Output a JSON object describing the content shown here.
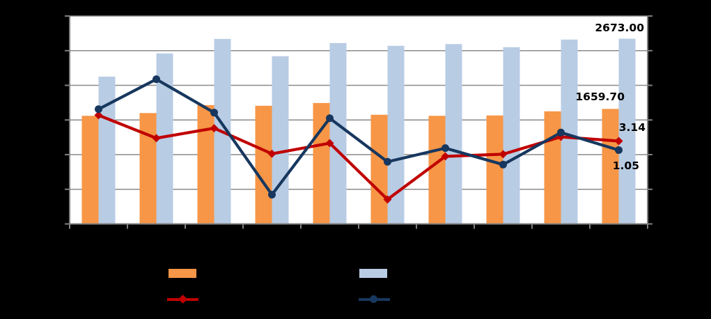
{
  "chart_data": {
    "type": "bar",
    "subtype": "combo-bar-line-dual-axis",
    "title": "",
    "categories": [
      "",
      "",
      "",
      "",
      "",
      "",
      "",
      "",
      "",
      ""
    ],
    "series": [
      {
        "name": "orange-bars",
        "type": "bar",
        "axis": "primary",
        "color": "#F79646",
        "values": [
          1560,
          1600,
          1715,
          1705,
          1745,
          1575,
          1560,
          1565,
          1625,
          1659.7
        ]
      },
      {
        "name": "lightblue-bars",
        "type": "bar",
        "axis": "primary",
        "color": "#B8CCE4",
        "values": [
          2125,
          2460,
          2670,
          2420,
          2610,
          2570,
          2595,
          2550,
          2660,
          2673
        ]
      },
      {
        "name": "red-line",
        "type": "line",
        "axis": "secondary",
        "color": "#C00000",
        "marker": "diamond",
        "values": [
          9.1,
          3.8,
          6.1,
          0.2,
          2.65,
          -10.35,
          -0.4,
          0.1,
          4.1,
          3.14
        ]
      },
      {
        "name": "navy-line",
        "type": "line",
        "axis": "secondary",
        "color": "#17375E",
        "marker": "circle",
        "values": [
          10.5,
          17.4,
          9.7,
          -9.25,
          8.4,
          -1.65,
          1.5,
          -2.3,
          5.1,
          1.05
        ]
      }
    ],
    "y_primary": {
      "min": 0,
      "max": 3000,
      "step": 500,
      "tick_labels_visible": false
    },
    "y_secondary": {
      "min": -16,
      "max": 32,
      "step": 8,
      "tick_labels_visible": false
    },
    "grid": true,
    "grid_color": "#8A8A8A",
    "axis_color": "#808080",
    "plot_background": "#FFFFFF",
    "page_background": "#000000",
    "legend_position": "bottom",
    "legend_text_visible": false,
    "data_labels": [
      {
        "text": "2673.00",
        "series": "lightblue-bars",
        "point": 10
      },
      {
        "text": "1659.70",
        "series": "orange-bars",
        "point": 10
      },
      {
        "text": "3.14",
        "series": "red-line",
        "point": 10
      },
      {
        "text": "1.05",
        "series": "navy-line",
        "point": 10
      }
    ]
  }
}
